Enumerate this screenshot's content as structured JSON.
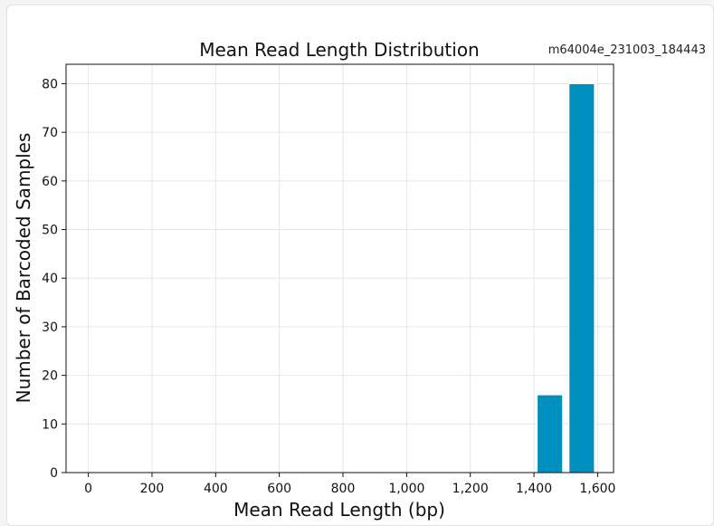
{
  "run_id": "m64004e_231003_184443",
  "chart_data": {
    "type": "bar",
    "title": "Mean Read Length Distribution",
    "xlabel": "Mean Read Length (bp)",
    "ylabel": "Number of Barcoded Samples",
    "xlim": [
      -70,
      1650
    ],
    "ylim": [
      0,
      84
    ],
    "xticks": [
      0,
      200,
      400,
      600,
      800,
      1000,
      1200,
      1400,
      1600
    ],
    "xtick_labels": [
      "0",
      "200",
      "400",
      "600",
      "800",
      "1,000",
      "1,200",
      "1,400",
      "1,600"
    ],
    "yticks": [
      0,
      10,
      20,
      30,
      40,
      50,
      60,
      70,
      80
    ],
    "ytick_labels": [
      "0",
      "10",
      "20",
      "30",
      "40",
      "50",
      "60",
      "70",
      "80"
    ],
    "bars": [
      {
        "x": 1450,
        "width": 80,
        "value": 16
      },
      {
        "x": 1550,
        "width": 80,
        "value": 80
      }
    ],
    "bar_color": "#0090bf",
    "grid": true,
    "legend": "none"
  }
}
